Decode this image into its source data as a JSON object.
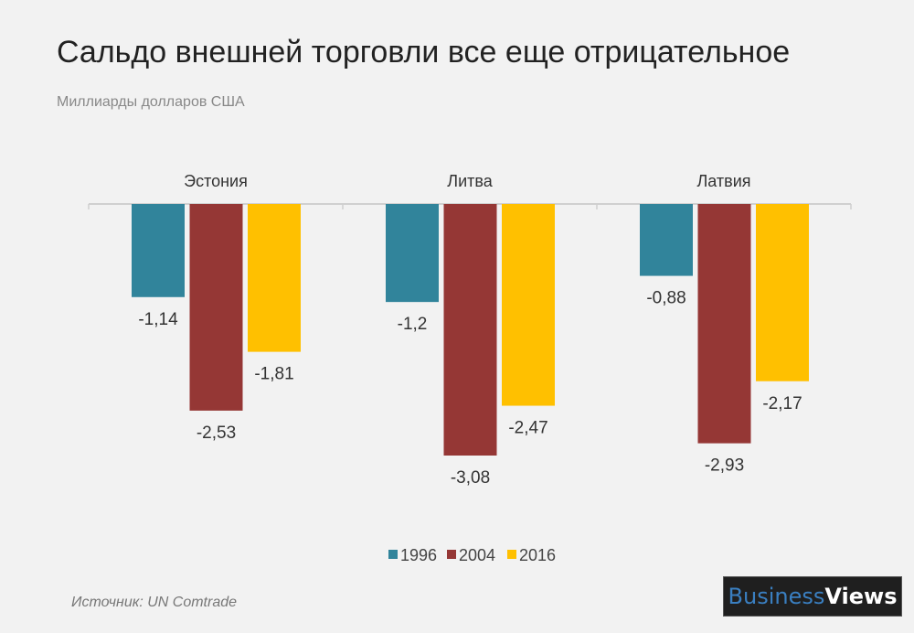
{
  "title": "Сальдо внешней торговли все еще отрицательное",
  "subtitle": "Миллиарды долларов США",
  "source": "Источник: UN Comtrade",
  "logo": {
    "part1": "Business",
    "part2": "Views"
  },
  "chart_data": {
    "type": "bar",
    "title": "Сальдо внешней торговли все еще отрицательное",
    "subtitle": "Миллиарды долларов США",
    "categories": [
      "Эстония",
      "Литва",
      "Латвия"
    ],
    "series": [
      {
        "name": "1996",
        "color": "#31849b",
        "values": [
          -1.14,
          -1.2,
          -0.88
        ],
        "labels": [
          "-1,14",
          "-1,2",
          "-0,88"
        ]
      },
      {
        "name": "2004",
        "color": "#953735",
        "values": [
          -2.53,
          -3.08,
          -2.93
        ],
        "labels": [
          "-2,53",
          "-3,08",
          "-2,93"
        ]
      },
      {
        "name": "2016",
        "color": "#ffc000",
        "values": [
          -1.81,
          -2.47,
          -2.17
        ],
        "labels": [
          "-1,81",
          "-2,47",
          "-2,17"
        ]
      }
    ],
    "ylim": [
      -3.08,
      0
    ],
    "grid": false,
    "legend": "bottom"
  }
}
